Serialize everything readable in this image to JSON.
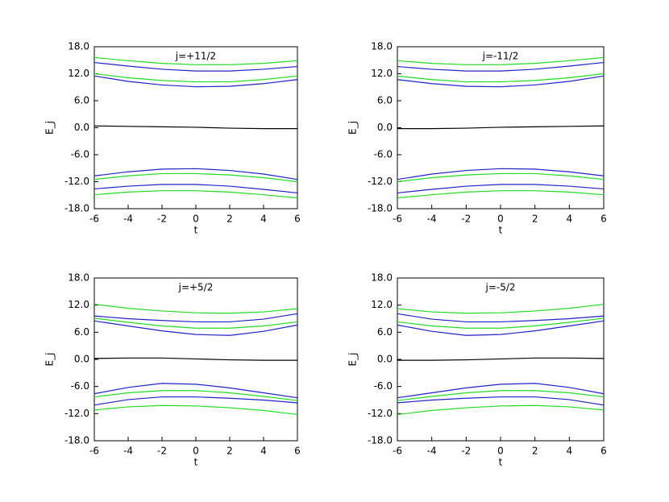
{
  "chart_data": [
    {
      "type": "line",
      "title": "j=+11/2",
      "x_label": "t",
      "y_label": "E_j",
      "x": [
        -6,
        -4,
        -2,
        0,
        2,
        4,
        6
      ],
      "xlim": [
        -6,
        6
      ],
      "xticks": [
        -6,
        -4,
        -2,
        0,
        2,
        4,
        6
      ],
      "ylim": [
        -18,
        18
      ],
      "yticks": [
        {
          "value": -18,
          "label": "-18.0"
        },
        {
          "value": -12,
          "label": "-12.0"
        },
        {
          "value": -6,
          "label": "-6.0"
        },
        {
          "value": 0,
          "label": "0.0"
        },
        {
          "value": 6,
          "label": "6.0"
        },
        {
          "value": 12,
          "label": "12.0"
        },
        {
          "value": 18,
          "label": "18.0"
        }
      ],
      "series": [
        {
          "color": "#22dd22",
          "values": [
            15.6,
            14.9,
            14.3,
            14.0,
            14.0,
            14.3,
            14.9
          ]
        },
        {
          "color": "#2222cc",
          "values": [
            14.5,
            13.7,
            13.0,
            12.6,
            12.6,
            13.0,
            13.6
          ]
        },
        {
          "color": "#22dd22",
          "values": [
            12.0,
            11.1,
            10.5,
            10.2,
            10.2,
            10.7,
            11.5
          ]
        },
        {
          "color": "#2222cc",
          "values": [
            11.5,
            10.3,
            9.5,
            9.1,
            9.2,
            9.8,
            10.7
          ]
        },
        {
          "color": "#000000",
          "values": [
            0.4,
            0.3,
            0.2,
            0.1,
            -0.1,
            -0.2,
            -0.2
          ]
        },
        {
          "color": "#2222cc",
          "values": [
            -10.7,
            -9.8,
            -9.2,
            -9.1,
            -9.5,
            -10.3,
            -11.5
          ]
        },
        {
          "color": "#22dd22",
          "values": [
            -11.5,
            -10.7,
            -10.2,
            -10.2,
            -10.5,
            -11.1,
            -12.0
          ]
        },
        {
          "color": "#2222cc",
          "values": [
            -13.6,
            -13.0,
            -12.6,
            -12.6,
            -13.0,
            -13.7,
            -14.5
          ]
        },
        {
          "color": "#22dd22",
          "values": [
            -14.9,
            -14.3,
            -14.0,
            -14.0,
            -14.3,
            -14.9,
            -15.6
          ]
        }
      ]
    },
    {
      "type": "line",
      "title": "j=-11/2",
      "x_label": "t",
      "y_label": "E_j",
      "x": [
        -6,
        -4,
        -2,
        0,
        2,
        4,
        6
      ],
      "xlim": [
        -6,
        6
      ],
      "xticks": [
        -6,
        -4,
        -2,
        0,
        2,
        4,
        6
      ],
      "ylim": [
        -18,
        18
      ],
      "yticks": [
        {
          "value": -18,
          "label": "-18.0"
        },
        {
          "value": -12,
          "label": "-12.0"
        },
        {
          "value": -6,
          "label": "-6.0"
        },
        {
          "value": 0,
          "label": "0.0"
        },
        {
          "value": 6,
          "label": "6.0"
        },
        {
          "value": 12,
          "label": "12.0"
        },
        {
          "value": 18,
          "label": "18.0"
        }
      ],
      "series": [
        {
          "color": "#22dd22",
          "values": [
            14.9,
            14.3,
            14.0,
            14.0,
            14.3,
            14.9,
            15.6
          ]
        },
        {
          "color": "#2222cc",
          "values": [
            13.6,
            13.0,
            12.6,
            12.6,
            13.0,
            13.7,
            14.5
          ]
        },
        {
          "color": "#22dd22",
          "values": [
            11.5,
            10.7,
            10.2,
            10.2,
            10.5,
            11.1,
            12.0
          ]
        },
        {
          "color": "#2222cc",
          "values": [
            10.7,
            9.8,
            9.2,
            9.1,
            9.5,
            10.3,
            11.5
          ]
        },
        {
          "color": "#000000",
          "values": [
            -0.2,
            -0.2,
            -0.1,
            0.1,
            0.2,
            0.3,
            0.4
          ]
        },
        {
          "color": "#2222cc",
          "values": [
            -11.5,
            -10.3,
            -9.5,
            -9.1,
            -9.2,
            -9.8,
            -10.7
          ]
        },
        {
          "color": "#22dd22",
          "values": [
            -12.0,
            -11.1,
            -10.5,
            -10.2,
            -10.2,
            -10.7,
            -11.5
          ]
        },
        {
          "color": "#2222cc",
          "values": [
            -14.5,
            -13.7,
            -13.0,
            -12.6,
            -12.6,
            -13.0,
            -13.6
          ]
        },
        {
          "color": "#22dd22",
          "values": [
            -15.6,
            -14.9,
            -14.3,
            -14.0,
            -14.0,
            -14.3,
            -14.9
          ]
        }
      ]
    },
    {
      "type": "line",
      "title": "j=+5/2",
      "x_label": "t",
      "y_label": "E_j",
      "x": [
        -6,
        -4,
        -2,
        0,
        2,
        4,
        6
      ],
      "xlim": [
        -6,
        6
      ],
      "xticks": [
        -6,
        -4,
        -2,
        0,
        2,
        4,
        6
      ],
      "ylim": [
        -18,
        18
      ],
      "yticks": [
        {
          "value": -18,
          "label": "-18.0"
        },
        {
          "value": -12,
          "label": "-12.0"
        },
        {
          "value": -6,
          "label": "-6.0"
        },
        {
          "value": 0,
          "label": "0.0"
        },
        {
          "value": 6,
          "label": "6.0"
        },
        {
          "value": 12,
          "label": "12.0"
        },
        {
          "value": 18,
          "label": "18.0"
        }
      ],
      "series": [
        {
          "color": "#22dd22",
          "values": [
            12.2,
            11.3,
            10.7,
            10.3,
            10.2,
            10.5,
            11.2
          ]
        },
        {
          "color": "#2222cc",
          "values": [
            9.6,
            9.0,
            8.6,
            8.3,
            8.3,
            8.9,
            10.1
          ]
        },
        {
          "color": "#22dd22",
          "values": [
            9.1,
            8.2,
            7.4,
            6.9,
            6.9,
            7.4,
            8.3
          ]
        },
        {
          "color": "#2222cc",
          "values": [
            8.5,
            7.4,
            6.3,
            5.5,
            5.3,
            6.2,
            7.6
          ]
        },
        {
          "color": "#000000",
          "values": [
            0.2,
            0.3,
            0.3,
            0.1,
            -0.1,
            -0.2,
            -0.2
          ]
        },
        {
          "color": "#2222cc",
          "values": [
            -7.6,
            -6.2,
            -5.3,
            -5.5,
            -6.3,
            -7.4,
            -8.5
          ]
        },
        {
          "color": "#22dd22",
          "values": [
            -8.3,
            -7.4,
            -6.9,
            -6.9,
            -7.4,
            -8.2,
            -9.1
          ]
        },
        {
          "color": "#2222cc",
          "values": [
            -10.1,
            -8.9,
            -8.3,
            -8.3,
            -8.6,
            -9.0,
            -9.6
          ]
        },
        {
          "color": "#22dd22",
          "values": [
            -11.2,
            -10.5,
            -10.2,
            -10.3,
            -10.7,
            -11.3,
            -12.2
          ]
        }
      ]
    },
    {
      "type": "line",
      "title": "j=-5/2",
      "x_label": "t",
      "y_label": "E_j",
      "x": [
        -6,
        -4,
        -2,
        0,
        2,
        4,
        6
      ],
      "xlim": [
        -6,
        6
      ],
      "xticks": [
        -6,
        -4,
        -2,
        0,
        2,
        4,
        6
      ],
      "ylim": [
        -18,
        18
      ],
      "yticks": [
        {
          "value": -18,
          "label": "-18.0"
        },
        {
          "value": -12,
          "label": "-12.0"
        },
        {
          "value": -6,
          "label": "-6.0"
        },
        {
          "value": 0,
          "label": "0.0"
        },
        {
          "value": 6,
          "label": "6.0"
        },
        {
          "value": 12,
          "label": "12.0"
        },
        {
          "value": 18,
          "label": "18.0"
        }
      ],
      "series": [
        {
          "color": "#22dd22",
          "values": [
            11.2,
            10.5,
            10.2,
            10.3,
            10.7,
            11.3,
            12.2
          ]
        },
        {
          "color": "#2222cc",
          "values": [
            10.1,
            8.9,
            8.3,
            8.3,
            8.6,
            9.0,
            9.6
          ]
        },
        {
          "color": "#22dd22",
          "values": [
            8.3,
            7.4,
            6.9,
            6.9,
            7.4,
            8.2,
            9.1
          ]
        },
        {
          "color": "#2222cc",
          "values": [
            7.6,
            6.2,
            5.3,
            5.5,
            6.3,
            7.4,
            8.5
          ]
        },
        {
          "color": "#000000",
          "values": [
            -0.2,
            -0.2,
            -0.1,
            0.1,
            0.3,
            0.3,
            0.2
          ]
        },
        {
          "color": "#2222cc",
          "values": [
            -8.5,
            -7.4,
            -6.3,
            -5.5,
            -5.3,
            -6.2,
            -7.6
          ]
        },
        {
          "color": "#22dd22",
          "values": [
            -9.1,
            -8.2,
            -7.4,
            -6.9,
            -6.9,
            -7.4,
            -8.3
          ]
        },
        {
          "color": "#2222cc",
          "values": [
            -9.6,
            -9.0,
            -8.6,
            -8.3,
            -8.3,
            -8.9,
            -10.1
          ]
        },
        {
          "color": "#22dd22",
          "values": [
            -12.2,
            -11.3,
            -10.7,
            -10.3,
            -10.2,
            -10.5,
            -11.2
          ]
        }
      ]
    }
  ]
}
